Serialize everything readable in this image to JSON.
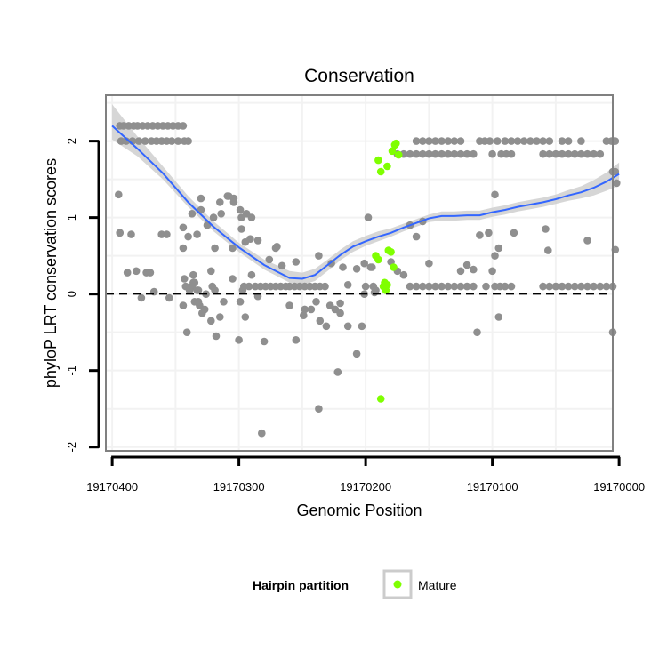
{
  "chart_data": {
    "type": "scatter",
    "title": "Conservation",
    "xlabel": "Genomic Position",
    "ylabel": "phyloP LRT conservation scores",
    "x_reversed": true,
    "xlim": [
      19170005,
      19170405
    ],
    "ylim": [
      -2.05,
      2.6
    ],
    "x_ticks": [
      19170400,
      19170300,
      19170200,
      19170100,
      19170000
    ],
    "x_tick_labels": [
      "19170400",
      "19170300",
      "19170200",
      "19170100",
      "19170000"
    ],
    "y_ticks": [
      -2,
      -1,
      0,
      1,
      2
    ],
    "y_tick_labels": [
      "-2",
      "-1",
      "0",
      "1",
      "2"
    ],
    "reference_line": {
      "y": 0,
      "style": "dashed",
      "color": "#000000"
    },
    "colors": {
      "background": "#ffffff",
      "grid": "#f2f2f2",
      "panel_border": "#808080",
      "other": "#8f8f8f",
      "mature": "#7fff00",
      "smooth": "#3366ff",
      "ribbon": "#cccccc"
    },
    "legend": {
      "title": "Hairpin partition",
      "entries": [
        "Mature"
      ],
      "position": "bottom"
    },
    "series": [
      {
        "name": "Other",
        "x": [
          19170394,
          19170391,
          19170387,
          19170383,
          19170380,
          19170376,
          19170372,
          19170368,
          19170364,
          19170360,
          19170356,
          19170352,
          19170348,
          19170344,
          19170393,
          19170389,
          19170384,
          19170379,
          19170374,
          19170369,
          19170365,
          19170361,
          19170357,
          19170353,
          19170348,
          19170343,
          19170340,
          19170395,
          19170394,
          19170388,
          19170381,
          19170377,
          19170373,
          19170367,
          19170361,
          19170357,
          19170394,
          19170385,
          19170370,
          19170355,
          19170337,
          19170335,
          19170342,
          19170332,
          19170330,
          19170315,
          19170308,
          19170304,
          19170298,
          19170276,
          19170266,
          19170255,
          19170237,
          19170227,
          19170218,
          19170214,
          19170207,
          19170201,
          19170196,
          19170344,
          19170337,
          19170330,
          19170320,
          19170314,
          19170309,
          19170304,
          19170299,
          19170294,
          19170290,
          19170340,
          19170333,
          19170325,
          19170319,
          19170305,
          19170298,
          19170295,
          19170291,
          19170285,
          19170344,
          19170343,
          19170339,
          19170336,
          19170333,
          19170331,
          19170327,
          19170322,
          19170318,
          19170344,
          19170336,
          19170329,
          19170321,
          19170315,
          19170312,
          19170296,
          19170292,
          19170287,
          19170283,
          19170279,
          19170275,
          19170271,
          19170267,
          19170263,
          19170260,
          19170256,
          19170252,
          19170248,
          19170244,
          19170240,
          19170236,
          19170232,
          19170341,
          19170322,
          19170300,
          19170290,
          19170280,
          19170270,
          19170335,
          19170332,
          19170326,
          19170319,
          19170305,
          19170299,
          19170295,
          19170297,
          19170285,
          19170260,
          19170249,
          19170248,
          19170243,
          19170239,
          19170228,
          19170224,
          19170220,
          19170237,
          19170207,
          19170203,
          19170282,
          19170255,
          19170231,
          19170214,
          19170236,
          19170220,
          19170271,
          19170222,
          19170200,
          19170194,
          19170201,
          19170195,
          19170193,
          19170192,
          19170185,
          19170180,
          19170175,
          19170170,
          19170165,
          19170160,
          19170155,
          19170150,
          19170145,
          19170140,
          19170135,
          19170130,
          19170125,
          19170120,
          19170115,
          19170105,
          19170098,
          19170094,
          19170090,
          19170085,
          19170060,
          19170055,
          19170050,
          19170045,
          19170040,
          19170035,
          19170030,
          19170025,
          19170020,
          19170015,
          19170010,
          19170005,
          19170175,
          19170170,
          19170165,
          19170160,
          19170155,
          19170150,
          19170145,
          19170140,
          19170135,
          19170130,
          19170125,
          19170120,
          19170115,
          19170100,
          19170093,
          19170089,
          19170085,
          19170060,
          19170055,
          19170050,
          19170045,
          19170040,
          19170035,
          19170030,
          19170025,
          19170020,
          19170015,
          19170005,
          19170003,
          19170002,
          19170003,
          19170095,
          19170103,
          19170110,
          19170115,
          19170120,
          19170150,
          19170160,
          19170155,
          19170125,
          19170100,
          19170098,
          19170083,
          19170058,
          19170056,
          19170025,
          19170160,
          19170155,
          19170150,
          19170145,
          19170140,
          19170135,
          19170130,
          19170125,
          19170110,
          19170106,
          19170102,
          19170096,
          19170090,
          19170085,
          19170080,
          19170075,
          19170070,
          19170065,
          19170060,
          19170055,
          19170045,
          19170040,
          19170030,
          19170010,
          19170006,
          19170004,
          19170003,
          19170098,
          19170112,
          19170005,
          19170095,
          19170165,
          19170198
        ],
        "y": [
          2.2,
          2.2,
          2.2,
          2.2,
          2.2,
          2.2,
          2.2,
          2.2,
          2.2,
          2.2,
          2.2,
          2.2,
          2.2,
          2.2,
          2.0,
          2.0,
          2.0,
          2.0,
          2.0,
          2.0,
          2.0,
          2.0,
          2.0,
          2.0,
          2.0,
          2.0,
          2.0,
          1.3,
          0.8,
          0.28,
          0.3,
          -0.05,
          0.28,
          0.03,
          0.78,
          0.78,
          0.8,
          0.78,
          0.28,
          -0.05,
          0.1,
          0.15,
          0.1,
          0.05,
          1.25,
          1.2,
          1.28,
          1.2,
          1.0,
          0.45,
          0.37,
          0.42,
          0.5,
          0.4,
          0.35,
          0.12,
          0.33,
          0.4,
          0.35,
          0.87,
          1.05,
          1.1,
          1.0,
          1.05,
          1.28,
          1.25,
          1.1,
          1.05,
          1.0,
          0.75,
          0.78,
          0.9,
          0.6,
          0.6,
          0.85,
          0.68,
          0.72,
          0.7,
          0.6,
          0.2,
          0.05,
          0.25,
          0.05,
          -0.15,
          -0.2,
          -0.35,
          -0.55,
          -0.15,
          0.15,
          -0.25,
          0.1,
          -0.3,
          -0.1,
          0.1,
          0.1,
          0.1,
          0.1,
          0.1,
          0.1,
          0.1,
          0.1,
          0.1,
          0.1,
          0.1,
          0.1,
          0.1,
          0.1,
          0.1,
          0.1,
          0.1,
          -0.5,
          0.3,
          -0.6,
          0.25,
          -0.62,
          0.62,
          -0.1,
          -0.1,
          0.0,
          0.05,
          0.2,
          -0.1,
          -0.3,
          0.05,
          -0.03,
          -0.15,
          -0.28,
          -0.2,
          -0.2,
          -0.1,
          -0.15,
          -0.2,
          -0.12,
          -1.5,
          -0.78,
          -0.42,
          -1.82,
          -0.6,
          -0.42,
          -0.42,
          -0.35,
          -0.25,
          0.6,
          -1.02,
          0.1,
          0.1,
          0.0,
          0.35,
          0.02,
          0.05,
          0.1,
          0.42,
          0.3,
          0.25,
          0.1,
          0.1,
          0.1,
          0.1,
          0.1,
          0.1,
          0.1,
          0.1,
          0.1,
          0.1,
          0.1,
          0.1,
          0.1,
          0.1,
          0.1,
          0.1,
          0.1,
          0.1,
          0.1,
          0.1,
          0.1,
          0.1,
          0.1,
          0.1,
          0.1,
          0.1,
          0.1,
          0.1,
          1.83,
          1.83,
          1.83,
          1.83,
          1.83,
          1.83,
          1.83,
          1.83,
          1.83,
          1.83,
          1.83,
          1.83,
          1.83,
          1.83,
          1.83,
          1.83,
          1.83,
          1.83,
          1.83,
          1.83,
          1.83,
          1.83,
          1.83,
          1.83,
          1.83,
          1.83,
          1.83,
          1.6,
          1.6,
          1.45,
          0.58,
          0.6,
          0.8,
          0.77,
          0.32,
          0.38,
          0.4,
          0.75,
          0.95,
          0.3,
          0.3,
          0.5,
          0.8,
          0.85,
          0.57,
          0.7,
          2.0,
          2.0,
          2.0,
          2.0,
          2.0,
          2.0,
          2.0,
          2.0,
          2.0,
          2.0,
          2.0,
          2.0,
          2.0,
          2.0,
          2.0,
          2.0,
          2.0,
          2.0,
          2.0,
          2.0,
          2.0,
          2.0,
          2.0,
          2.0,
          2.0,
          2.0,
          2.0,
          1.3,
          -0.5,
          -0.5,
          -0.3,
          0.9,
          1.0
        ],
        "color": "#8f8f8f"
      },
      {
        "name": "Mature",
        "x": [
          19170190,
          19170188,
          19170183,
          19170179,
          19170177,
          19170176,
          19170174,
          19170192,
          19170190,
          19170185,
          19170182,
          19170180,
          19170178,
          19170186,
          19170184,
          19170183,
          19170188
        ],
        "y": [
          1.75,
          1.6,
          1.67,
          1.87,
          1.95,
          1.97,
          1.82,
          0.5,
          0.45,
          0.15,
          0.57,
          0.55,
          0.35,
          0.1,
          0.05,
          0.12,
          -1.37
        ],
        "color": "#7fff00"
      },
      {
        "name": "Smooth",
        "type": "line",
        "x": [
          19170400,
          19170380,
          19170360,
          19170340,
          19170320,
          19170300,
          19170280,
          19170260,
          19170250,
          19170240,
          19170230,
          19170220,
          19170210,
          19170200,
          19170190,
          19170180,
          19170170,
          19170160,
          19170150,
          19170140,
          19170130,
          19170120,
          19170110,
          19170100,
          19170090,
          19170080,
          19170070,
          19170060,
          19170050,
          19170040,
          19170030,
          19170020,
          19170010,
          19170000
        ],
        "y": [
          2.2,
          1.9,
          1.58,
          1.2,
          0.88,
          0.61,
          0.38,
          0.21,
          0.2,
          0.25,
          0.38,
          0.51,
          0.62,
          0.69,
          0.75,
          0.8,
          0.87,
          0.93,
          0.99,
          1.02,
          1.02,
          1.03,
          1.03,
          1.07,
          1.1,
          1.14,
          1.17,
          1.2,
          1.24,
          1.29,
          1.33,
          1.39,
          1.47,
          1.57
        ],
        "ribbon_lower": [
          2.02,
          1.8,
          1.5,
          1.14,
          0.82,
          0.55,
          0.32,
          0.15,
          0.12,
          0.17,
          0.3,
          0.44,
          0.55,
          0.63,
          0.69,
          0.75,
          0.82,
          0.88,
          0.94,
          0.96,
          0.96,
          0.97,
          0.97,
          1.01,
          1.04,
          1.08,
          1.11,
          1.14,
          1.18,
          1.22,
          1.25,
          1.29,
          1.35,
          1.42
        ],
        "ribbon_upper": [
          2.48,
          2.06,
          1.67,
          1.28,
          0.95,
          0.67,
          0.45,
          0.3,
          0.28,
          0.33,
          0.45,
          0.58,
          0.69,
          0.76,
          0.82,
          0.86,
          0.92,
          0.98,
          1.04,
          1.08,
          1.08,
          1.09,
          1.09,
          1.13,
          1.16,
          1.2,
          1.23,
          1.26,
          1.3,
          1.36,
          1.41,
          1.49,
          1.59,
          1.72
        ],
        "color": "#3366ff"
      }
    ]
  }
}
